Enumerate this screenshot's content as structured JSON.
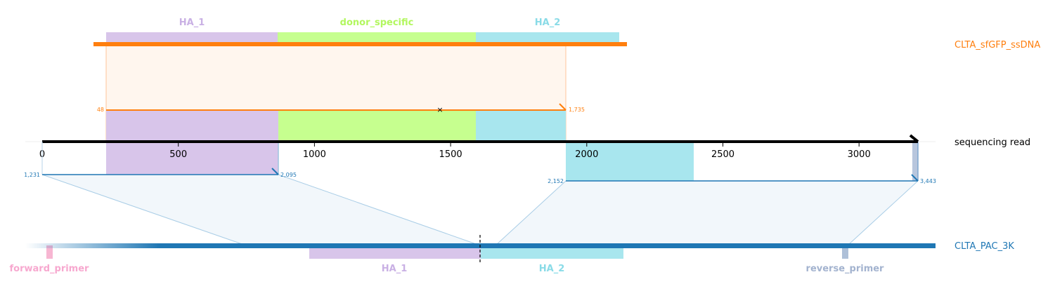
{
  "top_features": [
    {
      "name": "HA_1",
      "color": "#d8c5ea",
      "text_color": "#c9b0e4"
    },
    {
      "name": "donor_specific",
      "color": "#c6ff8f",
      "text_color": "#b2f75e"
    },
    {
      "name": "HA_2",
      "color": "#a8e6ee",
      "text_color": "#89dbe7"
    }
  ],
  "tracks": {
    "donor": {
      "name": "CLTA_sfGFP_ssDNA",
      "color": "#ff7f0e"
    },
    "read": {
      "name": "sequencing read",
      "color": "#000000"
    },
    "target": {
      "name": "CLTA_PAC_3K",
      "color": "#1f77b4"
    }
  },
  "read_axis": {
    "ticks": [
      "0",
      "500",
      "1000",
      "1500",
      "2000",
      "2500",
      "3000"
    ]
  },
  "alignments": {
    "donor": {
      "start_label": "48",
      "end_label": "1,735",
      "color": "#ff7f0e"
    },
    "target_1": {
      "start_label": "1,231",
      "end_label": "2,095",
      "color": "#1f77b4"
    },
    "target_2": {
      "start_label": "2,152",
      "end_label": "3,443",
      "color": "#1f77b4"
    }
  },
  "bottom_features": [
    {
      "name": "forward_primer",
      "color": "#f7b6d2"
    },
    {
      "name": "HA_1",
      "color": "#d8c5ea"
    },
    {
      "name": "HA_2",
      "color": "#a8e6ee"
    },
    {
      "name": "reverse_primer",
      "color": "#aec0d8"
    }
  ],
  "markers": {
    "cross": "×"
  }
}
